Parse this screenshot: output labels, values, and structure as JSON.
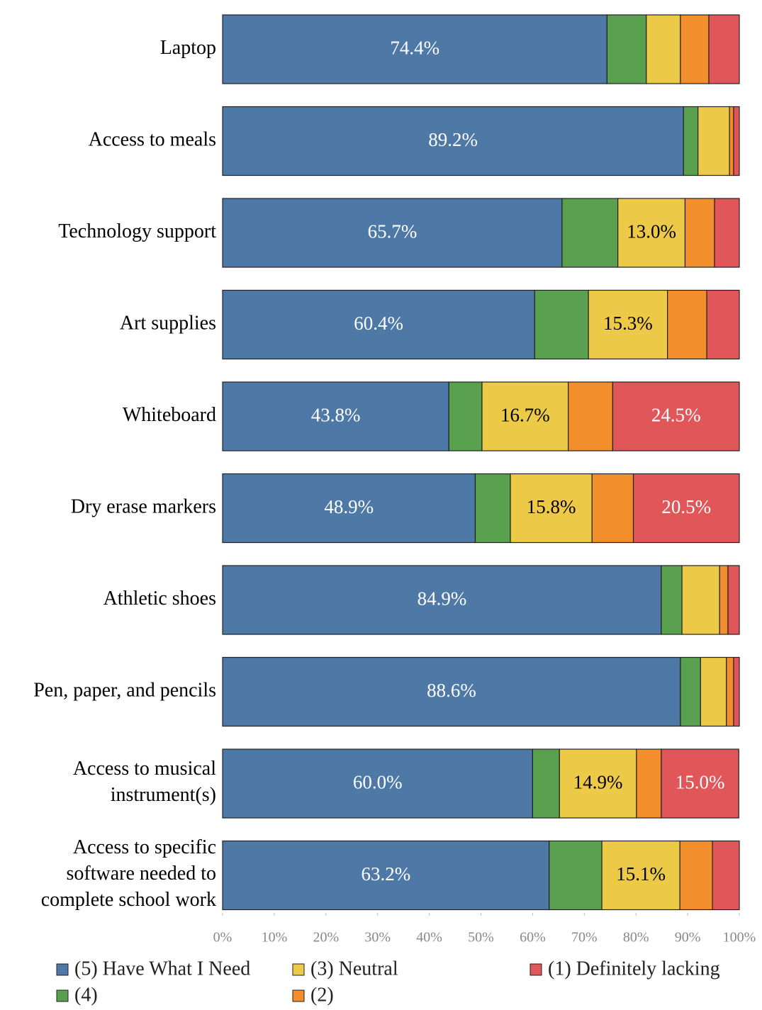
{
  "chart_data": {
    "type": "stacked-barh",
    "categories": [
      "Laptop",
      "Access to meals",
      "Technology support",
      "Art supplies",
      "Whiteboard",
      "Dry erase markers",
      "Athletic shoes",
      "Pen, paper, and pencils",
      "Access to musical instrument(s)",
      "Access to specific software needed to complete school work"
    ],
    "series": [
      {
        "name": "(5) Have What I Need",
        "color": "#4e79a7",
        "label_color": "#ffffff",
        "values": [
          74.4,
          89.2,
          65.7,
          60.4,
          43.8,
          48.9,
          84.9,
          88.6,
          60.0,
          63.2
        ],
        "value_labels": [
          "74.4%",
          "89.2%",
          "65.7%",
          "60.4%",
          "43.8%",
          "48.9%",
          "84.9%",
          "88.6%",
          "60.0%",
          "63.2%"
        ]
      },
      {
        "name": "(4)",
        "color": "#59a14f",
        "values": [
          7.6,
          2.8,
          10.8,
          10.4,
          6.4,
          6.8,
          4.0,
          3.9,
          5.2,
          10.2
        ]
      },
      {
        "name": "(3) Neutral",
        "color": "#edc948",
        "label_color": "#000000",
        "values": [
          6.6,
          6.1,
          13.0,
          15.3,
          16.7,
          15.8,
          7.3,
          5.0,
          14.9,
          15.1
        ],
        "value_labels": [
          null,
          null,
          "13.0%",
          "15.3%",
          "16.7%",
          "15.8%",
          null,
          null,
          "14.9%",
          "15.1%"
        ]
      },
      {
        "name": "(2)",
        "color": "#f28e2b",
        "values": [
          5.5,
          0.8,
          5.7,
          7.6,
          8.6,
          8.0,
          1.6,
          1.4,
          4.8,
          6.3
        ]
      },
      {
        "name": "(1) Definitely lacking",
        "color": "#e15759",
        "label_color": "#ffffff",
        "values": [
          5.9,
          1.1,
          4.8,
          6.3,
          24.5,
          20.5,
          2.2,
          1.1,
          15.0,
          5.2
        ],
        "value_labels": [
          null,
          null,
          null,
          null,
          "24.5%",
          "20.5%",
          null,
          null,
          "15.0%",
          null
        ]
      }
    ],
    "xlim": [
      0,
      100
    ],
    "xticks": [
      {
        "value": 0,
        "label": "0%"
      },
      {
        "value": 10,
        "label": "10%"
      },
      {
        "value": 20,
        "label": "20%"
      },
      {
        "value": 30,
        "label": "30%"
      },
      {
        "value": 40,
        "label": "40%"
      },
      {
        "value": 50,
        "label": "50%"
      },
      {
        "value": 60,
        "label": "60%"
      },
      {
        "value": 70,
        "label": "70%"
      },
      {
        "value": 80,
        "label": "80%"
      },
      {
        "value": 90,
        "label": "90%"
      },
      {
        "value": 100,
        "label": "100%"
      }
    ],
    "legend": "bottom"
  }
}
